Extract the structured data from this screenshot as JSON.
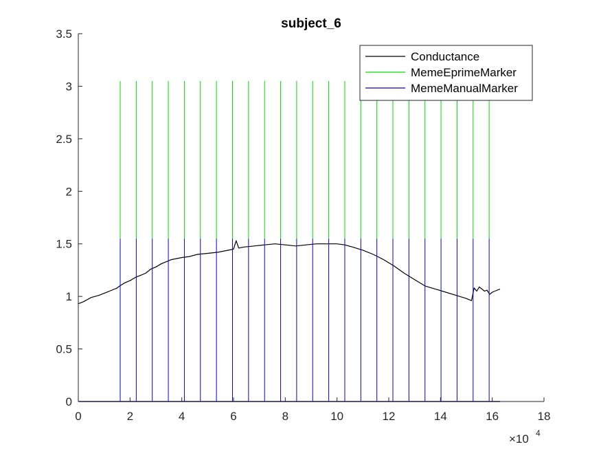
{
  "chart_data": {
    "type": "line",
    "title": "subject_6",
    "xlabel": "",
    "ylabel": "",
    "xlim": [
      0,
      180000
    ],
    "ylim": [
      0,
      3.5
    ],
    "x_exponent_label": "×10",
    "x_exponent": "4",
    "x_tick_values": [
      0,
      20000,
      40000,
      60000,
      80000,
      100000,
      120000,
      140000,
      160000,
      180000
    ],
    "x_tick_labels": [
      "0",
      "2",
      "4",
      "6",
      "8",
      "10",
      "12",
      "14",
      "16",
      "18"
    ],
    "y_tick_values": [
      0,
      0.5,
      1,
      1.5,
      2,
      2.5,
      3,
      3.5
    ],
    "y_tick_labels": [
      "0",
      "0.5",
      "1",
      "1.5",
      "2",
      "2.5",
      "3",
      "3.5"
    ],
    "grid": false,
    "legend_position": "top-right",
    "series": [
      {
        "name": "Conductance",
        "color": "#000000",
        "style": "line",
        "x": [
          0,
          2000,
          5000,
          8000,
          10000,
          13000,
          15000,
          16000,
          18000,
          20000,
          22000,
          24000,
          26000,
          28000,
          30000,
          32000,
          34000,
          36000,
          38000,
          40000,
          43000,
          46000,
          50000,
          54000,
          56000,
          58000,
          60000,
          61000,
          62000,
          64000,
          68000,
          72000,
          76000,
          80000,
          84000,
          88000,
          92000,
          96000,
          100000,
          103000,
          106000,
          110000,
          114000,
          118000,
          122000,
          126000,
          130000,
          134000,
          138000,
          142000,
          146000,
          150000,
          152000,
          153000,
          154000,
          155000,
          156000,
          157000,
          158000,
          159000,
          160000,
          162000,
          163000
        ],
        "y": [
          0.93,
          0.95,
          0.99,
          1.01,
          1.03,
          1.06,
          1.08,
          1.1,
          1.13,
          1.15,
          1.18,
          1.2,
          1.22,
          1.26,
          1.28,
          1.31,
          1.33,
          1.35,
          1.36,
          1.37,
          1.38,
          1.4,
          1.41,
          1.42,
          1.43,
          1.44,
          1.45,
          1.53,
          1.46,
          1.47,
          1.48,
          1.49,
          1.5,
          1.49,
          1.48,
          1.49,
          1.5,
          1.5,
          1.5,
          1.49,
          1.47,
          1.44,
          1.4,
          1.35,
          1.29,
          1.22,
          1.16,
          1.1,
          1.07,
          1.04,
          1.01,
          0.98,
          0.96,
          1.08,
          1.05,
          1.09,
          1.07,
          1.05,
          1.06,
          1.02,
          1.04,
          1.06,
          1.07
        ]
      },
      {
        "name": "MemeEprimeMarker",
        "color": "#00dd00",
        "style": "stem",
        "x": [
          16200,
          22400,
          28600,
          34800,
          41000,
          47200,
          53400,
          59600,
          65800,
          72000,
          78200,
          84400,
          90600,
          96800,
          103000,
          109200,
          115400,
          121600,
          127800,
          134000,
          140200,
          146400,
          152600,
          158800
        ],
        "y": [
          3.05,
          3.05,
          3.05,
          3.05,
          3.05,
          3.05,
          3.05,
          3.05,
          3.05,
          3.05,
          3.05,
          3.05,
          3.05,
          3.05,
          3.05,
          3.05,
          3.05,
          3.05,
          3.05,
          3.05,
          3.05,
          3.05,
          3.05,
          3.05
        ]
      },
      {
        "name": "MemeManualMarker",
        "color": "#0000dd",
        "style": "stem",
        "x": [
          16200,
          22400,
          28600,
          34800,
          41000,
          47200,
          53400,
          59600,
          65800,
          72000,
          78200,
          84400,
          90600,
          96800,
          103000,
          109200,
          115400,
          121600,
          127800,
          134000,
          140200,
          146400,
          152600,
          158800
        ],
        "y": [
          1.55,
          1.55,
          1.55,
          1.55,
          1.55,
          1.55,
          1.55,
          1.55,
          1.55,
          1.55,
          1.55,
          1.55,
          1.55,
          1.55,
          1.55,
          1.55,
          1.55,
          1.55,
          1.55,
          1.55,
          1.55,
          1.55,
          1.55,
          1.55
        ],
        "baseline_end": 163000
      }
    ]
  }
}
